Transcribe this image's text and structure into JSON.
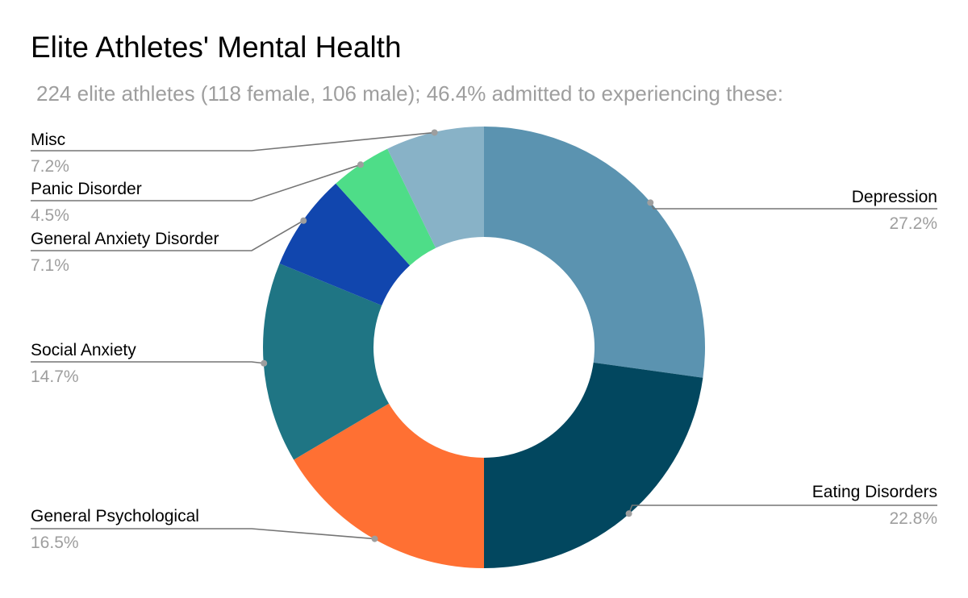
{
  "chart_data": {
    "type": "pie",
    "donut": true,
    "title": "Elite Athletes' Mental Health",
    "subtitle": "224 elite athletes (118 female, 106 male); 46.4% admitted to experiencing these:",
    "slices": [
      {
        "label": "Depression",
        "value": 27.2,
        "value_label": "27.2%",
        "color": "#5b93b0"
      },
      {
        "label": "Eating Disorders",
        "value": 22.8,
        "value_label": "22.8%",
        "color": "#02475f"
      },
      {
        "label": "General Psychological",
        "value": 16.5,
        "value_label": "16.5%",
        "color": "#ff7033"
      },
      {
        "label": "Social Anxiety",
        "value": 14.7,
        "value_label": "14.7%",
        "color": "#1f7584"
      },
      {
        "label": "General Anxiety Disorder",
        "value": 7.1,
        "value_label": "7.1%",
        "color": "#1146ae"
      },
      {
        "label": "Panic Disorder",
        "value": 4.5,
        "value_label": "4.5%",
        "color": "#4edd88"
      },
      {
        "label": "Misc",
        "value": 7.2,
        "value_label": "7.2%",
        "color": "#88b2c7"
      }
    ],
    "legend": "none",
    "labels": "outside with leader lines"
  }
}
